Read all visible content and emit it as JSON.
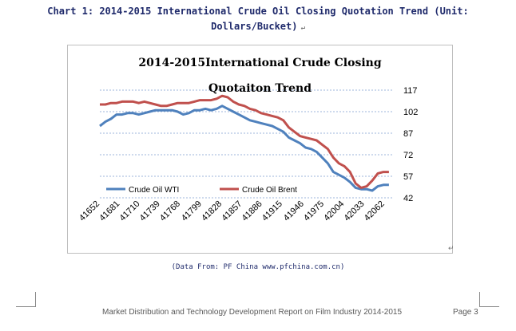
{
  "document": {
    "caption_line1": "Chart 1: 2014-2015 International Crude Oil Closing Quotation Trend (Unit:",
    "caption_line2": "Dollars/Bucket)",
    "source": "(Data From: PF China www.pfchina.com.cn)",
    "footer_text": "Market Distribution and Technology Development Report on Film Industry 2014-2015",
    "page_label": "Page 3"
  },
  "colors": {
    "wti": "#4f81bd",
    "brent": "#c0504d",
    "caption": "#1f2a6b",
    "grid": "#7f9fd0"
  },
  "chart_data": {
    "type": "line",
    "title_line1": "2014-2015International Crude Closing",
    "title_line2": "Quotaiton Trend",
    "x": [
      41652,
      41660,
      41668,
      41676,
      41684,
      41692,
      41700,
      41708,
      41716,
      41724,
      41732,
      41740,
      41748,
      41756,
      41764,
      41772,
      41780,
      41788,
      41796,
      41804,
      41812,
      41820,
      41828,
      41836,
      41844,
      41852,
      41860,
      41868,
      41876,
      41884,
      41892,
      41900,
      41908,
      41916,
      41924,
      41932,
      41940,
      41948,
      41956,
      41964,
      41972,
      41980,
      41988,
      41996,
      42004,
      42012,
      42020,
      42028,
      42036,
      42044,
      42052,
      42060,
      42068
    ],
    "x_ticks": [
      41652,
      41681,
      41710,
      41739,
      41768,
      41799,
      41828,
      41857,
      41886,
      41915,
      41946,
      41975,
      42004,
      42033,
      42062
    ],
    "y_ticks": [
      42,
      57,
      72,
      87,
      102,
      117
    ],
    "ylim": [
      42,
      117
    ],
    "xlim": [
      41652,
      42075
    ],
    "grid": "horizontal dashed",
    "legend_position": "bottom-left",
    "series": [
      {
        "name": "Crude Oil WTI",
        "values": [
          92,
          95,
          97,
          100,
          100,
          101,
          101,
          100,
          101,
          102,
          103,
          103,
          103,
          103,
          102,
          100,
          101,
          103,
          103,
          104,
          103,
          104,
          106,
          104,
          102,
          100,
          98,
          96,
          95,
          94,
          93,
          92,
          90,
          88,
          84,
          82,
          80,
          77,
          76,
          74,
          70,
          66,
          60,
          58,
          56,
          53,
          49,
          48,
          48,
          47,
          50,
          51,
          51
        ]
      },
      {
        "name": "Crude Oil Brent",
        "values": [
          107,
          107,
          108,
          108,
          109,
          109,
          109,
          108,
          109,
          108,
          107,
          106,
          106,
          107,
          108,
          108,
          108,
          109,
          110,
          110,
          110,
          111,
          113,
          112,
          109,
          107,
          106,
          104,
          103,
          101,
          100,
          99,
          98,
          96,
          91,
          88,
          85,
          84,
          83,
          82,
          79,
          76,
          70,
          66,
          64,
          60,
          52,
          49,
          50,
          54,
          59,
          60,
          60
        ]
      }
    ]
  }
}
